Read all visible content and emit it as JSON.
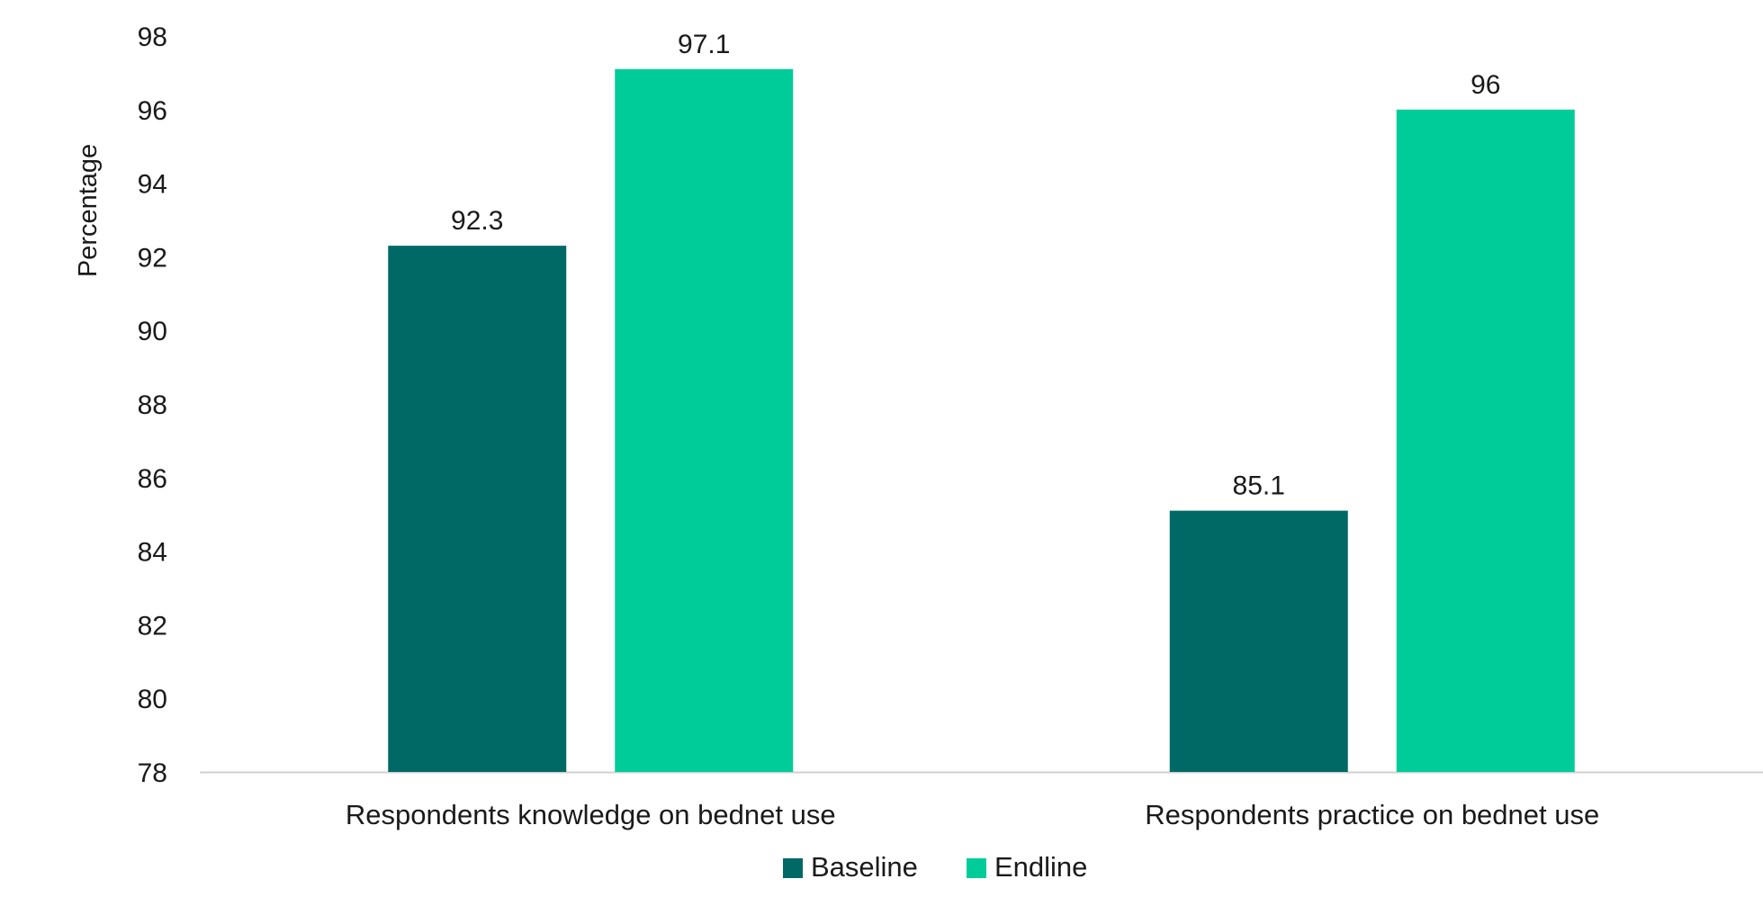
{
  "chart_data": {
    "type": "bar",
    "categories": [
      "Respondents knowledge on bednet use",
      "Respondents practice on bednet use"
    ],
    "series": [
      {
        "name": "Baseline",
        "values": [
          92.3,
          85.1
        ],
        "color": "#006966"
      },
      {
        "name": "Endline",
        "values": [
          97.1,
          96
        ],
        "color": "#00CC9A"
      }
    ],
    "data_labels": [
      [
        "92.3",
        "85.1"
      ],
      [
        "97.1",
        "96"
      ]
    ],
    "ylabel": "Percentage",
    "ylim": [
      78,
      98
    ],
    "yticks": [
      78,
      80,
      82,
      84,
      86,
      88,
      90,
      92,
      94,
      96,
      98
    ],
    "grid": false,
    "legend_position": "bottom-center",
    "axis_color": "#d0d0d0"
  }
}
